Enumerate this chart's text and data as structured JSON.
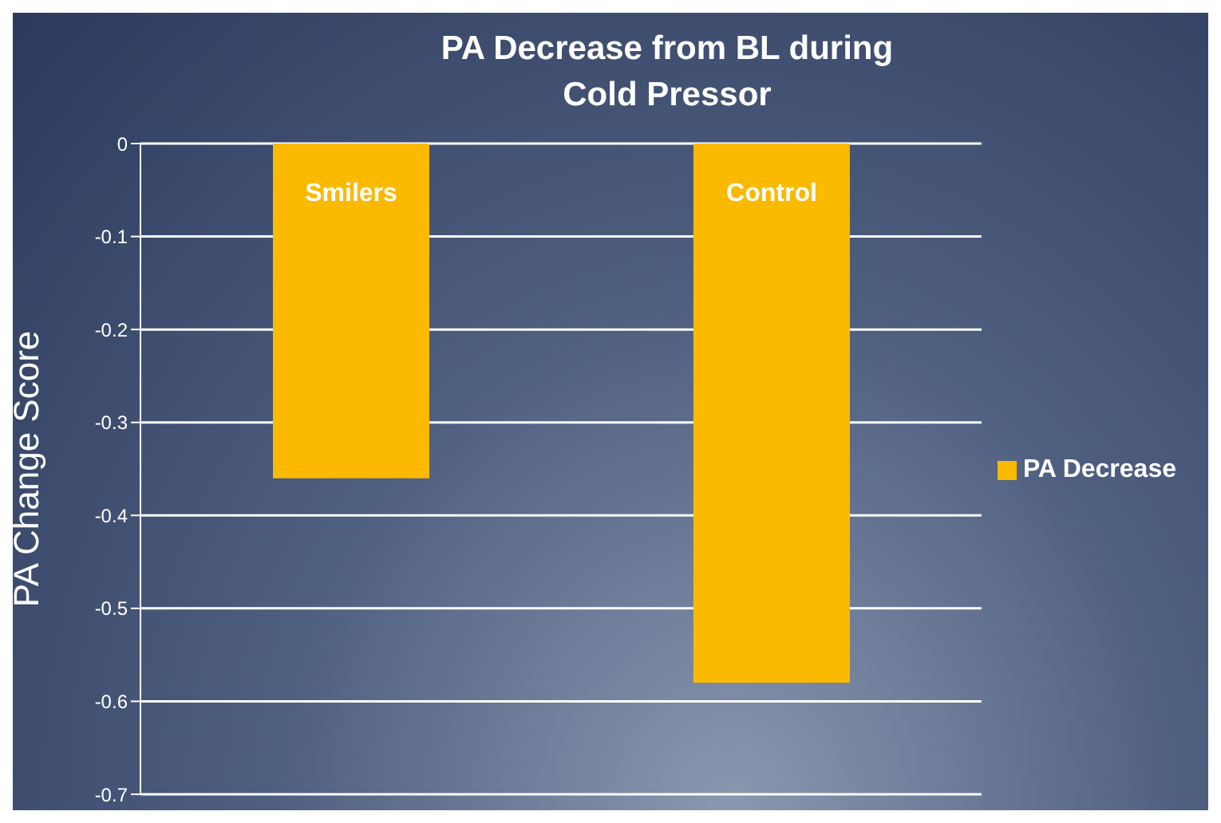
{
  "chart_data": {
    "type": "bar",
    "title": "PA Decrease from BL during Cold Pressor",
    "ylabel": "PA Change Score",
    "categories": [
      "Smilers",
      "Control"
    ],
    "series": [
      {
        "name": "PA Decrease",
        "color": "#fbb900",
        "values": [
          -0.36,
          -0.58
        ]
      }
    ],
    "ylim": [
      -0.7,
      0
    ],
    "yticks": [
      -0.7,
      -0.6,
      -0.5,
      -0.4,
      -0.3,
      -0.2,
      -0.1,
      0
    ],
    "grid": "y",
    "legend": "right"
  }
}
